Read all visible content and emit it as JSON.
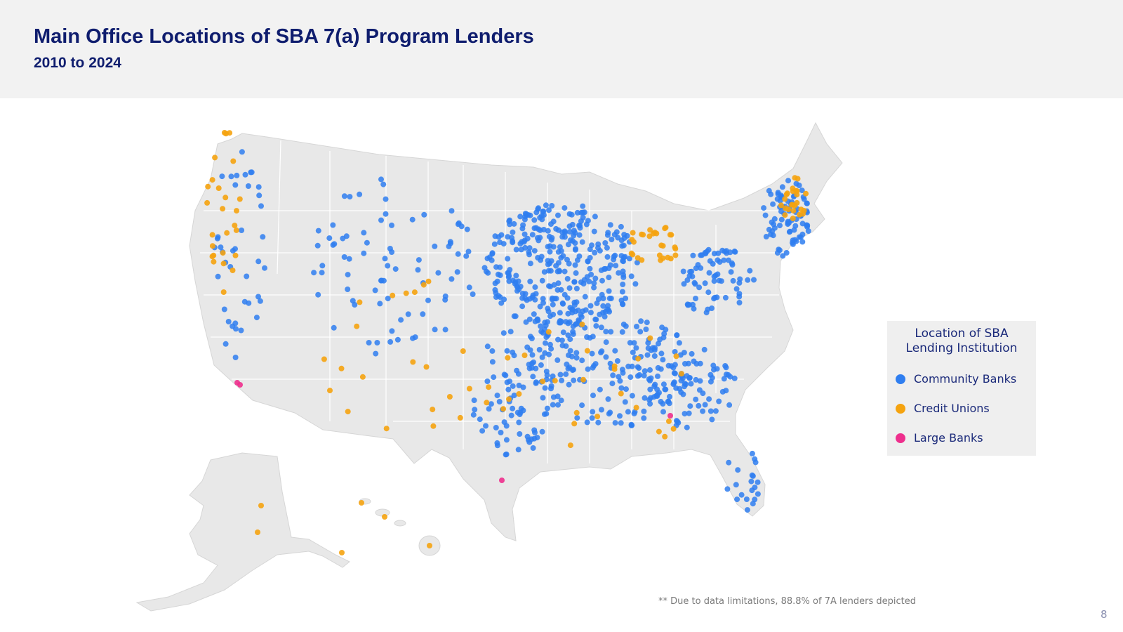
{
  "header": {
    "title": "Main Office Locations of SBA 7(a) Program Lenders",
    "subtitle": "2010 to 2024"
  },
  "legend": {
    "title_line1": "Location of SBA",
    "title_line2": "Lending Institution",
    "items": [
      {
        "label": "Community Banks",
        "color": "#2f7ef0"
      },
      {
        "label": "Credit Unions",
        "color": "#f5a30f"
      },
      {
        "label": "Large Banks",
        "color": "#ee2f8d"
      }
    ]
  },
  "map": {
    "land_color": "#e8e8e8",
    "border_color": "#ffffff",
    "regions": [
      "contiguous-us",
      "alaska",
      "hawaii"
    ]
  },
  "footnote": "** Due to data limitations, 88.8% of 7A lenders depicted",
  "page_number": "8"
}
